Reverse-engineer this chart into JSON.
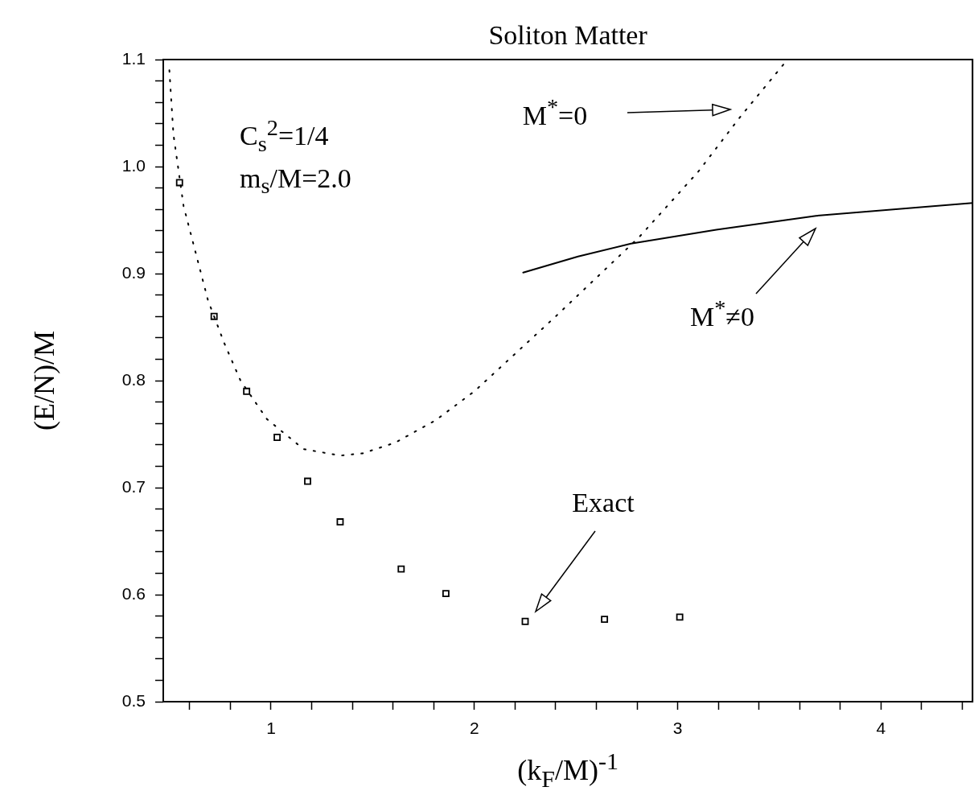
{
  "chart_data": {
    "type": "line",
    "title": "Soliton Matter",
    "xlabel": "(k$_{F}$/M)$^{-1}$",
    "ylabel": "(E/N)/M",
    "xlim": [
      0.47,
      4.45
    ],
    "ylim": [
      0.5,
      1.1
    ],
    "xticks": [
      {
        "value": 0.6,
        "label": null
      },
      {
        "value": 0.8,
        "label": null
      },
      1,
      {
        "value": 1.2,
        "label": null
      },
      {
        "value": 1.4,
        "label": null
      },
      {
        "value": 1.6,
        "label": null
      },
      {
        "value": 1.8,
        "label": null
      },
      2,
      {
        "value": 2.2,
        "label": null
      },
      {
        "value": 2.4,
        "label": null
      },
      {
        "value": 2.6,
        "label": null
      },
      {
        "value": 2.8,
        "label": null
      },
      3,
      {
        "value": 3.2,
        "label": null
      },
      {
        "value": 3.4,
        "label": null
      },
      {
        "value": 3.6,
        "label": null
      },
      {
        "value": 3.8,
        "label": null
      },
      4,
      {
        "value": 4.2,
        "label": null
      },
      {
        "value": 4.4,
        "label": null
      }
    ],
    "yticks": [
      0.5,
      {
        "value": 0.52,
        "label": null
      },
      {
        "value": 0.54,
        "label": null
      },
      {
        "value": 0.56,
        "label": null
      },
      {
        "value": 0.58,
        "label": null
      },
      0.6,
      {
        "value": 0.62,
        "label": null
      },
      {
        "value": 0.64,
        "label": null
      },
      {
        "value": 0.66,
        "label": null
      },
      {
        "value": 0.68,
        "label": null
      },
      0.7,
      {
        "value": 0.72,
        "label": null
      },
      {
        "value": 0.74,
        "label": null
      },
      {
        "value": 0.76,
        "label": null
      },
      {
        "value": 0.78,
        "label": null
      },
      0.8,
      {
        "value": 0.82,
        "label": null
      },
      {
        "value": 0.84,
        "label": null
      },
      {
        "value": 0.86,
        "label": null
      },
      {
        "value": 0.88,
        "label": null
      },
      0.9,
      {
        "value": 0.92,
        "label": null
      },
      {
        "value": 0.94,
        "label": null
      },
      {
        "value": 0.96,
        "label": null
      },
      {
        "value": 0.98,
        "label": null
      },
      {
        "value": 1.0,
        "label": "1.0"
      },
      {
        "value": 1.02,
        "label": null
      },
      {
        "value": 1.04,
        "label": null
      },
      {
        "value": 1.06,
        "label": null
      },
      {
        "value": 1.08,
        "label": null
      },
      1.1
    ],
    "grid": false,
    "legend": false,
    "series": [
      {
        "color": "#000000",
        "line_style": "dotted",
        "marker": "none",
        "x": [
          0.5,
          0.52,
          0.57,
          0.63,
          0.69,
          0.77,
          0.85,
          0.98,
          1.16,
          1.34,
          1.45,
          1.61,
          1.81,
          2.0,
          2.08,
          2.4,
          2.81,
          3.1,
          3.31,
          3.54
        ],
        "values": [
          1.09,
          1.03,
          0.963,
          0.919,
          0.875,
          0.835,
          0.8,
          0.764,
          0.736,
          0.73,
          0.732,
          0.742,
          0.763,
          0.79,
          0.804,
          0.86,
          0.934,
          0.995,
          1.047,
          1.1
        ]
      },
      {
        "color": "#000000",
        "line_style": "solid",
        "marker": "none",
        "x": [
          2.24,
          2.51,
          2.77,
          3.19,
          3.68,
          4.45
        ],
        "values": [
          0.901,
          0.916,
          0.928,
          0.941,
          0.954,
          0.966
        ]
      },
      {
        "type": "scatter",
        "color": "#000000",
        "marker": "square",
        "x": [
          0.55,
          0.72,
          0.88,
          1.03,
          1.18,
          1.34,
          1.64,
          1.86,
          2.25,
          2.64,
          3.01
        ],
        "values": [
          0.985,
          0.86,
          0.79,
          0.747,
          0.706,
          0.668,
          0.624,
          0.601,
          0.575,
          0.577,
          0.579
        ]
      }
    ],
    "annotations": [
      "C$_{s}$$^{2}$=1/4",
      "m$_{s}$/M=2.0",
      "M$^{*}$=0",
      "M$^{*}$≠0",
      "Exact"
    ]
  }
}
